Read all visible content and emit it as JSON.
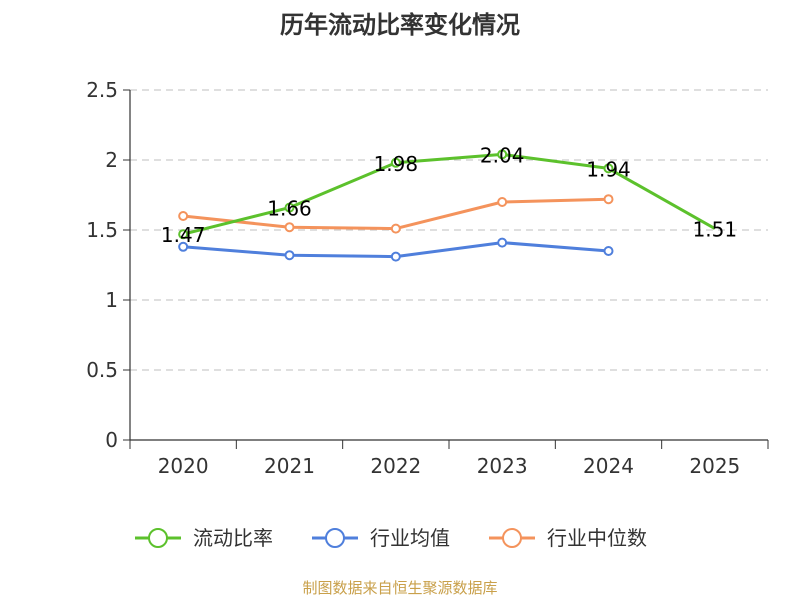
{
  "chart_data": {
    "type": "line",
    "title": "历年流动比率变化情况",
    "categories": [
      "2020",
      "2021",
      "2022",
      "2023",
      "2024",
      "2025"
    ],
    "ylim": [
      0,
      2.5
    ],
    "yticks": [
      "0",
      "0.5",
      "1",
      "1.5",
      "2",
      "2.5"
    ],
    "yticks_values": [
      0,
      0.5,
      1,
      1.5,
      2,
      2.5
    ],
    "grid": true,
    "legend_position": "bottom",
    "series": [
      {
        "name": "流动比率",
        "color": "#5cc12c",
        "values": [
          1.47,
          1.66,
          1.98,
          2.04,
          1.94,
          1.51
        ],
        "labels": [
          "1.47",
          "1.66",
          "1.98",
          "2.04",
          "1.94",
          "1.51"
        ],
        "show_labels": true
      },
      {
        "name": "行业均值",
        "color": "#4f7fdc",
        "values": [
          1.38,
          1.32,
          1.31,
          1.41,
          1.35,
          null
        ],
        "labels": [],
        "show_labels": false
      },
      {
        "name": "行业中位数",
        "color": "#f4935c",
        "values": [
          1.6,
          1.52,
          1.51,
          1.7,
          1.72,
          null
        ],
        "labels": [],
        "show_labels": false
      }
    ],
    "source": "制图数据来自恒生聚源数据库"
  }
}
